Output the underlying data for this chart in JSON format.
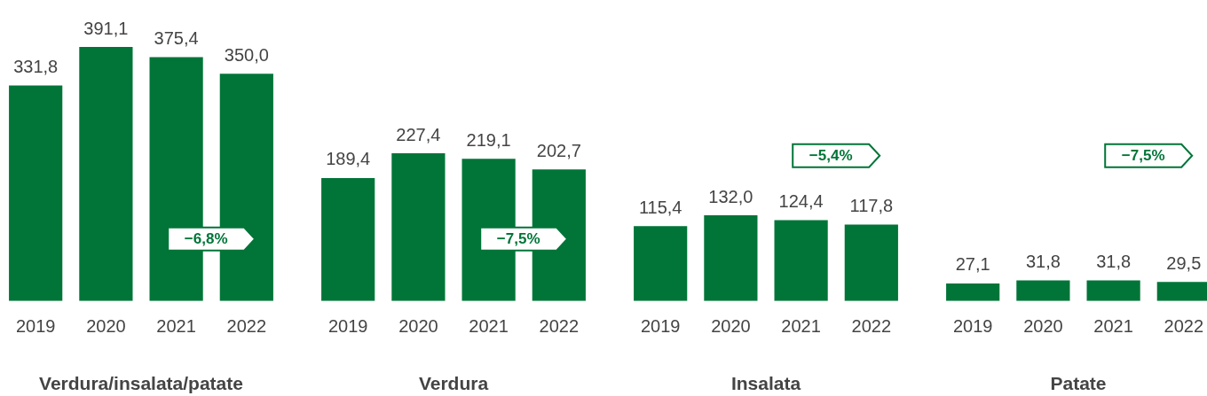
{
  "chart_data": [
    {
      "type": "bar",
      "title": "Verdura/insalata/patate",
      "categories": [
        "2019",
        "2020",
        "2021",
        "2022"
      ],
      "values": [
        331.8,
        391.1,
        375.4,
        350.0
      ],
      "color": "#017538",
      "value_labels": [
        "331,8",
        "391,1",
        "375,4",
        "350,0"
      ],
      "grid": false,
      "legend": false,
      "annotations": [
        "−6,8%"
      ]
    },
    {
      "type": "bar",
      "title": "Verdura",
      "categories": [
        "2019",
        "2020",
        "2021",
        "2022"
      ],
      "values": [
        189.4,
        227.4,
        219.1,
        202.7
      ],
      "color": "#017538",
      "value_labels": [
        "189,4",
        "227,4",
        "219,1",
        "202,7"
      ],
      "grid": false,
      "legend": false,
      "annotations": [
        "−7,5%"
      ]
    },
    {
      "type": "bar",
      "title": "Insalata",
      "categories": [
        "2019",
        "2020",
        "2021",
        "2022"
      ],
      "values": [
        115.4,
        132.0,
        124.4,
        117.8
      ],
      "color": "#017538",
      "value_labels": [
        "115,4",
        "132,0",
        "124,4",
        "117,8"
      ],
      "grid": false,
      "legend": false,
      "annotations": [
        "−5,4%"
      ]
    },
    {
      "type": "bar",
      "title": "Patate",
      "categories": [
        "2019",
        "2020",
        "2021",
        "2022"
      ],
      "values": [
        27.1,
        31.8,
        31.8,
        29.5
      ],
      "color": "#017538",
      "value_labels": [
        "27,1",
        "31,8",
        "31,8",
        "29,5"
      ],
      "grid": false,
      "legend": false,
      "annotations": [
        "−7,5%"
      ]
    }
  ]
}
